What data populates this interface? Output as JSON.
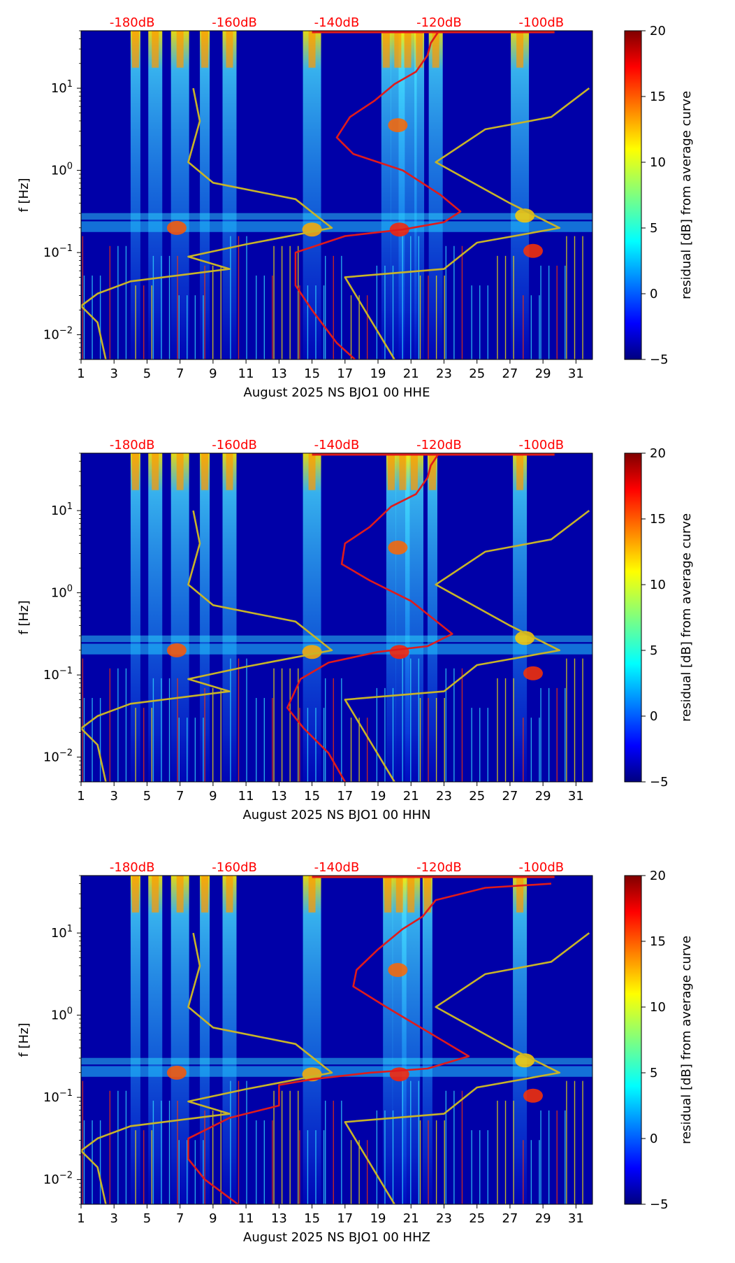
{
  "colors": {
    "red_curve": "#e01b1b",
    "olive_curve": "#c8b428",
    "db_label": "#ff0000"
  },
  "chart_data": [
    {
      "type": "heatmap",
      "xlabel": "August 2025 NS BJO1 00 HHE",
      "ylabel": "f [Hz]",
      "x_ticks": [
        "1",
        "3",
        "5",
        "7",
        "9",
        "11",
        "13",
        "15",
        "17",
        "19",
        "21",
        "23",
        "25",
        "27",
        "29",
        "31"
      ],
      "xlim": [
        1,
        32
      ],
      "ylim": [
        0.005,
        50
      ],
      "y_scale": "log",
      "y_ticks": [
        {
          "label": "10",
          "exp": "−2",
          "value": 0.01
        },
        {
          "label": "10",
          "exp": "−1",
          "value": 0.1
        },
        {
          "label": "10",
          "exp": "0",
          "value": 1
        },
        {
          "label": "10",
          "exp": "1",
          "value": 10
        }
      ],
      "top_ticks": [
        "-180dB",
        "-160dB",
        "-140dB",
        "-120dB",
        "-100dB"
      ],
      "top_tick_days": [
        4.1,
        10.3,
        16.5,
        22.7,
        28.9
      ],
      "colorbar": {
        "label": "residual [dB] from average curve",
        "range": [
          -5,
          20
        ],
        "ticks": [
          "20",
          "15",
          "10",
          "5",
          "0",
          "−5"
        ]
      },
      "bright_days": [
        4.3,
        5.5,
        7.0,
        8.5,
        10.0,
        15.0,
        19.5,
        20.2,
        20.8,
        21.5,
        22.5,
        27.6
      ],
      "red_curve_day_vs_logf": [
        [
          22.7,
          1.7
        ],
        [
          22.2,
          1.55
        ],
        [
          22.0,
          1.4
        ],
        [
          21.3,
          1.2
        ],
        [
          20.0,
          1.05
        ],
        [
          18.8,
          0.85
        ],
        [
          17.3,
          0.65
        ],
        [
          16.5,
          0.4
        ],
        [
          17.5,
          0.2
        ],
        [
          20.5,
          0.0
        ],
        [
          22.8,
          -0.3
        ],
        [
          24.0,
          -0.5
        ],
        [
          23.0,
          -0.63
        ],
        [
          20.5,
          -0.72
        ],
        [
          17.0,
          -0.8
        ],
        [
          14.0,
          -1.0
        ],
        [
          14.0,
          -1.4
        ],
        [
          15.0,
          -1.7
        ],
        [
          16.5,
          -2.1
        ],
        [
          17.6,
          -2.3
        ]
      ],
      "olive_curve_day_vs_logf": [
        [
          7.8,
          1.0
        ],
        [
          8.2,
          0.6
        ],
        [
          7.5,
          0.1
        ],
        [
          9.0,
          -0.15
        ],
        [
          14.0,
          -0.35
        ],
        [
          16.2,
          -0.7
        ],
        [
          11.0,
          -0.9
        ],
        [
          7.5,
          -1.05
        ],
        [
          10.0,
          -1.2
        ],
        [
          4.0,
          -1.35
        ],
        [
          2.0,
          -1.5
        ],
        [
          1.0,
          -1.65
        ],
        [
          2.0,
          -1.85
        ],
        [
          2.5,
          -2.3
        ]
      ],
      "olive_curve2_day_vs_logf": [
        [
          31.8,
          1.0
        ],
        [
          29.5,
          0.65
        ],
        [
          25.5,
          0.5
        ],
        [
          22.5,
          0.1
        ],
        [
          27.0,
          -0.4
        ],
        [
          30.0,
          -0.7
        ],
        [
          25.0,
          -0.88
        ],
        [
          23.0,
          -1.2
        ],
        [
          17.0,
          -1.3
        ],
        [
          20.0,
          -2.3
        ]
      ]
    },
    {
      "type": "heatmap",
      "xlabel": "August 2025 NS BJO1 00 HHN",
      "ylabel": "f [Hz]",
      "x_ticks": [
        "1",
        "3",
        "5",
        "7",
        "9",
        "11",
        "13",
        "15",
        "17",
        "19",
        "21",
        "23",
        "25",
        "27",
        "29",
        "31"
      ],
      "xlim": [
        1,
        32
      ],
      "ylim": [
        0.005,
        50
      ],
      "y_scale": "log",
      "y_ticks": [
        {
          "label": "10",
          "exp": "−2",
          "value": 0.01
        },
        {
          "label": "10",
          "exp": "−1",
          "value": 0.1
        },
        {
          "label": "10",
          "exp": "0",
          "value": 1
        },
        {
          "label": "10",
          "exp": "1",
          "value": 10
        }
      ],
      "top_ticks": [
        "-180dB",
        "-160dB",
        "-140dB",
        "-120dB",
        "-100dB"
      ],
      "top_tick_days": [
        4.1,
        10.3,
        16.5,
        22.7,
        28.9
      ],
      "colorbar": {
        "label": "residual [dB] from average curve",
        "range": [
          -5,
          20
        ],
        "ticks": [
          "20",
          "15",
          "10",
          "5",
          "0",
          "−5"
        ]
      },
      "bright_days": [
        4.3,
        5.5,
        7.0,
        8.5,
        10.0,
        15.0,
        19.8,
        20.5,
        21.2,
        22.3,
        27.6
      ],
      "red_curve_day_vs_logf": [
        [
          22.7,
          1.7
        ],
        [
          22.2,
          1.55
        ],
        [
          22.0,
          1.4
        ],
        [
          21.3,
          1.2
        ],
        [
          19.8,
          1.05
        ],
        [
          18.5,
          0.8
        ],
        [
          17.0,
          0.6
        ],
        [
          16.8,
          0.35
        ],
        [
          18.5,
          0.15
        ],
        [
          21.0,
          -0.1
        ],
        [
          23.5,
          -0.5
        ],
        [
          22.0,
          -0.65
        ],
        [
          19.0,
          -0.72
        ],
        [
          16.0,
          -0.85
        ],
        [
          14.3,
          -1.05
        ],
        [
          13.5,
          -1.4
        ],
        [
          14.5,
          -1.65
        ],
        [
          16.0,
          -1.95
        ],
        [
          17.0,
          -2.3
        ]
      ],
      "olive_curve_day_vs_logf": [
        [
          7.8,
          1.0
        ],
        [
          8.2,
          0.6
        ],
        [
          7.5,
          0.1
        ],
        [
          9.0,
          -0.15
        ],
        [
          14.0,
          -0.35
        ],
        [
          16.2,
          -0.7
        ],
        [
          11.0,
          -0.9
        ],
        [
          7.5,
          -1.05
        ],
        [
          10.0,
          -1.2
        ],
        [
          4.0,
          -1.35
        ],
        [
          2.0,
          -1.5
        ],
        [
          1.0,
          -1.65
        ],
        [
          2.0,
          -1.85
        ],
        [
          2.5,
          -2.3
        ]
      ],
      "olive_curve2_day_vs_logf": [
        [
          31.8,
          1.0
        ],
        [
          29.5,
          0.65
        ],
        [
          25.5,
          0.5
        ],
        [
          22.5,
          0.1
        ],
        [
          27.0,
          -0.4
        ],
        [
          30.0,
          -0.7
        ],
        [
          25.0,
          -0.88
        ],
        [
          23.0,
          -1.2
        ],
        [
          17.0,
          -1.3
        ],
        [
          20.0,
          -2.3
        ]
      ]
    },
    {
      "type": "heatmap",
      "xlabel": "August 2025 NS BJO1 00 HHZ",
      "ylabel": "f [Hz]",
      "x_ticks": [
        "1",
        "3",
        "5",
        "7",
        "9",
        "11",
        "13",
        "15",
        "17",
        "19",
        "21",
        "23",
        "25",
        "27",
        "29",
        "31"
      ],
      "xlim": [
        1,
        32
      ],
      "ylim": [
        0.005,
        50
      ],
      "y_scale": "log",
      "y_ticks": [
        {
          "label": "10",
          "exp": "−2",
          "value": 0.01
        },
        {
          "label": "10",
          "exp": "−1",
          "value": 0.1
        },
        {
          "label": "10",
          "exp": "0",
          "value": 1
        },
        {
          "label": "10",
          "exp": "1",
          "value": 10
        }
      ],
      "top_ticks": [
        "-180dB",
        "-160dB",
        "-140dB",
        "-120dB",
        "-100dB"
      ],
      "top_tick_days": [
        4.1,
        10.3,
        16.5,
        22.7,
        28.9
      ],
      "colorbar": {
        "label": "residual [dB] from average curve",
        "range": [
          -5,
          20
        ],
        "ticks": [
          "20",
          "15",
          "10",
          "5",
          "0",
          "−5"
        ]
      },
      "bright_days": [
        4.3,
        5.5,
        7.0,
        8.5,
        10.0,
        15.0,
        19.6,
        20.3,
        21.0,
        22.0,
        27.6
      ],
      "red_curve_day_vs_logf": [
        [
          29.5,
          1.6
        ],
        [
          25.5,
          1.55
        ],
        [
          22.5,
          1.4
        ],
        [
          21.7,
          1.2
        ],
        [
          20.5,
          1.05
        ],
        [
          19.0,
          0.8
        ],
        [
          17.7,
          0.55
        ],
        [
          17.5,
          0.35
        ],
        [
          19.5,
          0.1
        ],
        [
          22.0,
          -0.2
        ],
        [
          24.5,
          -0.5
        ],
        [
          22.0,
          -0.65
        ],
        [
          18.5,
          -0.7
        ],
        [
          15.0,
          -0.78
        ],
        [
          13.0,
          -0.85
        ],
        [
          13.0,
          -1.1
        ],
        [
          10.0,
          -1.25
        ],
        [
          7.5,
          -1.5
        ],
        [
          7.5,
          -1.75
        ],
        [
          8.5,
          -2.0
        ],
        [
          10.5,
          -2.3
        ]
      ],
      "olive_curve_day_vs_logf": [
        [
          7.8,
          1.0
        ],
        [
          8.2,
          0.6
        ],
        [
          7.5,
          0.1
        ],
        [
          9.0,
          -0.15
        ],
        [
          14.0,
          -0.35
        ],
        [
          16.2,
          -0.7
        ],
        [
          11.0,
          -0.9
        ],
        [
          7.5,
          -1.05
        ],
        [
          10.0,
          -1.2
        ],
        [
          4.0,
          -1.35
        ],
        [
          2.0,
          -1.5
        ],
        [
          1.0,
          -1.65
        ],
        [
          2.0,
          -1.85
        ],
        [
          2.5,
          -2.3
        ]
      ],
      "olive_curve2_day_vs_logf": [
        [
          31.8,
          1.0
        ],
        [
          29.5,
          0.65
        ],
        [
          25.5,
          0.5
        ],
        [
          22.5,
          0.1
        ],
        [
          27.0,
          -0.4
        ],
        [
          30.0,
          -0.7
        ],
        [
          25.0,
          -0.88
        ],
        [
          23.0,
          -1.2
        ],
        [
          17.0,
          -1.3
        ],
        [
          20.0,
          -2.3
        ]
      ]
    }
  ]
}
